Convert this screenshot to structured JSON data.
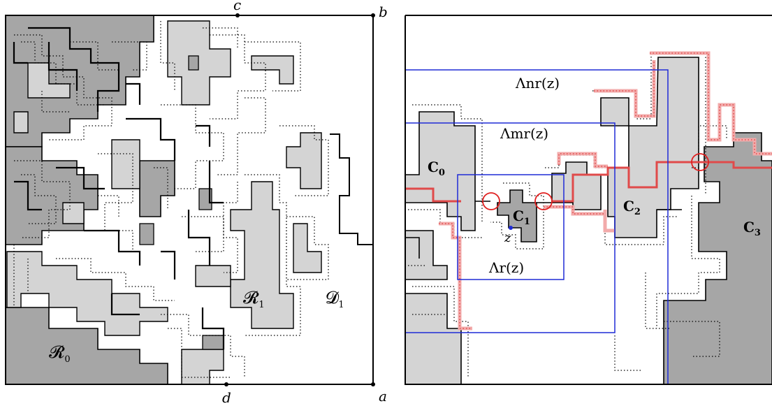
{
  "colors": {
    "light_gray": "#d4d4d4",
    "dark_gray": "#a6a6a6",
    "blue": "#1f2bd6",
    "red": "#e04a4a",
    "pink_dotted": "#f2aaaa",
    "black": "#000000"
  },
  "left_panel": {
    "corner_labels": {
      "a": "a",
      "b": "b",
      "c": "c",
      "d": "d"
    },
    "region_labels": {
      "R0": {
        "main": "𝓡",
        "sub": "0"
      },
      "R1": {
        "main": "𝓡",
        "sub": "1"
      },
      "D1": {
        "main": "𝓓",
        "sub": "1"
      }
    }
  },
  "right_panel": {
    "box_labels": {
      "nr": "Λnr(z)",
      "mr": "Λmr(z)",
      "r": "Λr(z)"
    },
    "cluster_labels": {
      "C0": {
        "main": "C",
        "sub": "0"
      },
      "C1": {
        "main": "C",
        "sub": "1"
      },
      "C2": {
        "main": "C",
        "sub": "2"
      },
      "C3": {
        "main": "C",
        "sub": "3"
      }
    },
    "point_label": "z"
  }
}
